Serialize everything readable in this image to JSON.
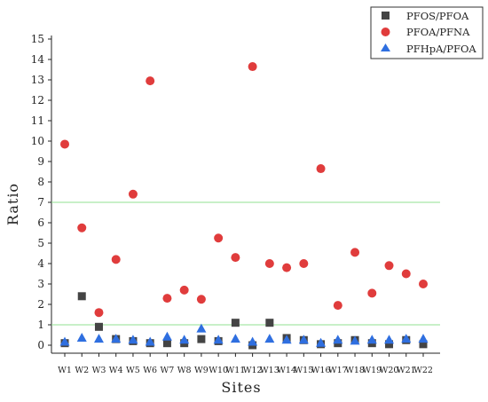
{
  "chart_data": {
    "type": "scatter",
    "xlabel": "Sites",
    "ylabel": "Ratio",
    "categories": [
      "W1",
      "W2",
      "W3",
      "W4",
      "W5",
      "W6",
      "W7",
      "W8",
      "W9",
      "W10",
      "W11",
      "W12",
      "W13",
      "W14",
      "W15",
      "W16",
      "W17",
      "W18",
      "W19",
      "W20",
      "W21",
      "W22"
    ],
    "ylim": [
      0,
      15
    ],
    "yticks": [
      0,
      1,
      2,
      3,
      4,
      5,
      6,
      7,
      8,
      9,
      10,
      11,
      12,
      13,
      14,
      15
    ],
    "reference_lines": [
      {
        "y": 1,
        "color": "#90e090"
      },
      {
        "y": 7,
        "color": "#90e090"
      }
    ],
    "legend_position": "top-right",
    "series": [
      {
        "name": "PFOS/PFOA",
        "marker": "square",
        "color": "#444444",
        "values": [
          0.1,
          2.4,
          0.9,
          0.3,
          0.2,
          0.1,
          0.1,
          0.1,
          0.3,
          0.2,
          1.1,
          0.0,
          1.1,
          0.35,
          0.25,
          0.05,
          0.1,
          0.25,
          0.1,
          0.05,
          0.25,
          0.05
        ]
      },
      {
        "name": "PFOA/PFNA",
        "marker": "circle",
        "color": "#e03c3c",
        "values": [
          9.85,
          5.75,
          1.6,
          4.2,
          7.4,
          12.95,
          2.3,
          2.7,
          2.25,
          5.25,
          4.3,
          13.65,
          4.0,
          3.8,
          4.0,
          8.65,
          1.95,
          4.55,
          2.55,
          3.9,
          3.5,
          3.0
        ]
      },
      {
        "name": "PFHpA/PFOA",
        "marker": "triangle",
        "color": "#2f6fe0",
        "values": [
          0.15,
          0.35,
          0.3,
          0.3,
          0.25,
          0.15,
          0.4,
          0.25,
          0.8,
          0.25,
          0.3,
          0.15,
          0.3,
          0.25,
          0.25,
          0.1,
          0.25,
          0.2,
          0.25,
          0.25,
          0.3,
          0.3
        ]
      }
    ]
  }
}
